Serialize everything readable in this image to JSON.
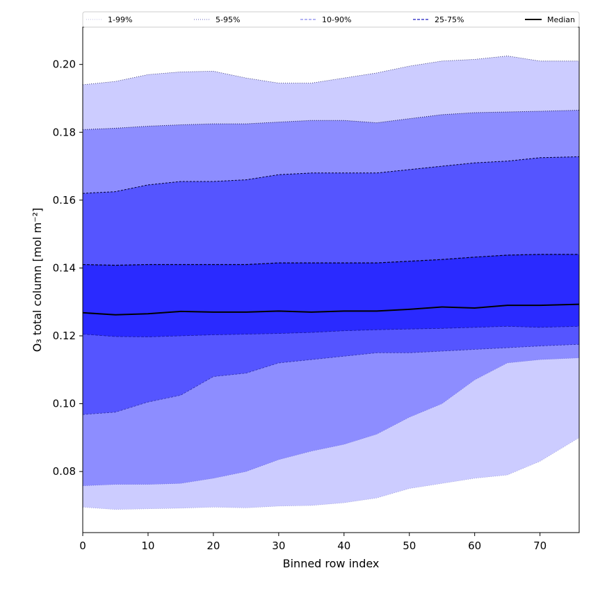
{
  "chart_data": {
    "type": "area",
    "title": "",
    "xlabel": "Binned row index",
    "ylabel": "O₃ total column [mol m⁻²]",
    "xlim": [
      0,
      76
    ],
    "ylim": [
      0.062,
      0.211
    ],
    "xticks": [
      0,
      10,
      20,
      30,
      40,
      50,
      60,
      70
    ],
    "yticks": [
      0.08,
      0.1,
      0.12,
      0.14,
      0.16,
      0.18,
      0.2
    ],
    "grid": false,
    "legend_position": "top",
    "colors": {
      "band_1_99": "#ccccff",
      "band_5_95": "#8d8dff",
      "band_10_90": "#5555ff",
      "band_25_75": "#2a2aff",
      "median": "#000000"
    },
    "legend": [
      {
        "label": "1-99%",
        "style": "dotted-thin"
      },
      {
        "label": "5-95%",
        "style": "dotted"
      },
      {
        "label": "10-90%",
        "style": "dashed-light"
      },
      {
        "label": "25-75%",
        "style": "dashed"
      },
      {
        "label": "Median",
        "style": "solid"
      }
    ],
    "x": [
      0,
      5,
      10,
      15,
      20,
      25,
      30,
      35,
      40,
      45,
      50,
      55,
      60,
      65,
      70,
      76
    ],
    "series": [
      {
        "name": "1%",
        "values": [
          0.0695,
          0.0688,
          0.069,
          0.0692,
          0.0695,
          0.0693,
          0.0698,
          0.07,
          0.0708,
          0.0722,
          0.075,
          0.0765,
          0.078,
          0.079,
          0.083,
          0.09
        ]
      },
      {
        "name": "5%",
        "values": [
          0.0758,
          0.0762,
          0.0762,
          0.0765,
          0.078,
          0.08,
          0.0835,
          0.086,
          0.088,
          0.091,
          0.096,
          0.1,
          0.107,
          0.112,
          0.113,
          0.1135
        ]
      },
      {
        "name": "10%",
        "values": [
          0.0968,
          0.0975,
          0.1005,
          0.1025,
          0.108,
          0.109,
          0.112,
          0.113,
          0.114,
          0.115,
          0.115,
          0.1155,
          0.116,
          0.1165,
          0.117,
          0.1175
        ]
      },
      {
        "name": "25%",
        "values": [
          0.1205,
          0.1198,
          0.1197,
          0.12,
          0.1203,
          0.1205,
          0.1207,
          0.121,
          0.1215,
          0.1218,
          0.122,
          0.1222,
          0.1225,
          0.1228,
          0.1225,
          0.1228
        ]
      },
      {
        "name": "Median",
        "values": [
          0.1268,
          0.1262,
          0.1265,
          0.1272,
          0.127,
          0.127,
          0.1273,
          0.127,
          0.1273,
          0.1273,
          0.1278,
          0.1285,
          0.1282,
          0.129,
          0.129,
          0.1293
        ]
      },
      {
        "name": "75%",
        "values": [
          0.141,
          0.1408,
          0.141,
          0.141,
          0.141,
          0.141,
          0.1415,
          0.1415,
          0.1415,
          0.1415,
          0.142,
          0.1425,
          0.1432,
          0.1438,
          0.144,
          0.144
        ]
      },
      {
        "name": "90%",
        "values": [
          0.162,
          0.1625,
          0.1645,
          0.1655,
          0.1655,
          0.166,
          0.1675,
          0.168,
          0.168,
          0.168,
          0.169,
          0.17,
          0.171,
          0.1715,
          0.1725,
          0.1728
        ]
      },
      {
        "name": "95%",
        "values": [
          0.1808,
          0.1812,
          0.1818,
          0.1822,
          0.1825,
          0.1825,
          0.183,
          0.1835,
          0.1835,
          0.1828,
          0.184,
          0.1852,
          0.1858,
          0.186,
          0.1862,
          0.1865
        ]
      },
      {
        "name": "99%",
        "values": [
          0.194,
          0.195,
          0.197,
          0.1978,
          0.198,
          0.196,
          0.1945,
          0.1945,
          0.196,
          0.1975,
          0.1995,
          0.201,
          0.2015,
          0.2025,
          0.201,
          0.201
        ]
      }
    ]
  }
}
